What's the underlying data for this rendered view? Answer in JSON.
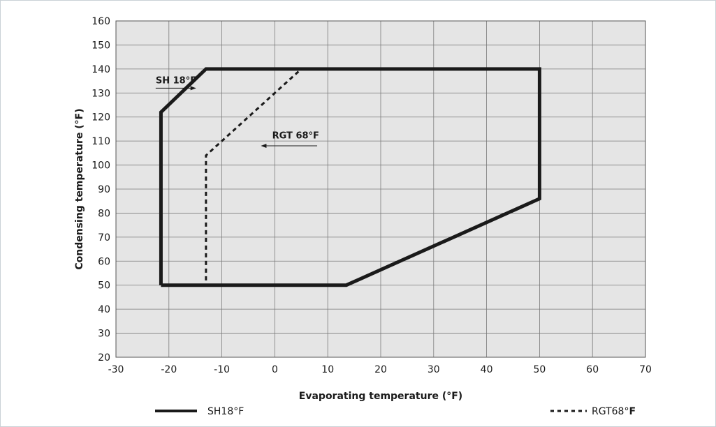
{
  "chart_data": {
    "type": "line",
    "xlabel": "Evaporating temperature (°F)",
    "ylabel": "Condensing temperature (°F)",
    "xlim": [
      -30,
      70
    ],
    "ylim": [
      20,
      160
    ],
    "xticks": [
      -30,
      -20,
      -10,
      0,
      10,
      20,
      30,
      40,
      50,
      60,
      70
    ],
    "yticks": [
      20,
      30,
      40,
      50,
      60,
      70,
      80,
      90,
      100,
      110,
      120,
      130,
      140,
      150,
      160
    ],
    "grid": true,
    "plot_background": "#e5e5e5",
    "series": [
      {
        "name": "SH18°F",
        "style": "solid",
        "color": "#1a1a1a",
        "x": [
          -21.5,
          -21.5,
          -13,
          50,
          50,
          13.5,
          -21.5
        ],
        "y": [
          50,
          122,
          140,
          140,
          86,
          50,
          50
        ]
      },
      {
        "name": "RGT68°F",
        "style": "dashed",
        "color": "#1a1a1a",
        "x": [
          -13,
          -13,
          5
        ],
        "y": [
          52,
          104,
          140
        ]
      }
    ],
    "annotations": [
      {
        "text": "SH 18°F",
        "x": -22.5,
        "y": 134,
        "arrow_from_x": -22.5,
        "arrow_to_x": -15,
        "arrow_y": 132
      },
      {
        "text": "RGT 68°F",
        "x": -0.5,
        "y": 111,
        "arrow_from_x": 8,
        "arrow_to_x": -2.5,
        "arrow_y": 108
      }
    ]
  },
  "legend": {
    "items": [
      {
        "label": "SH18°F",
        "style": "solid"
      },
      {
        "label_main": "RGT68°",
        "label_bold": "F",
        "style": "dashed"
      }
    ]
  }
}
